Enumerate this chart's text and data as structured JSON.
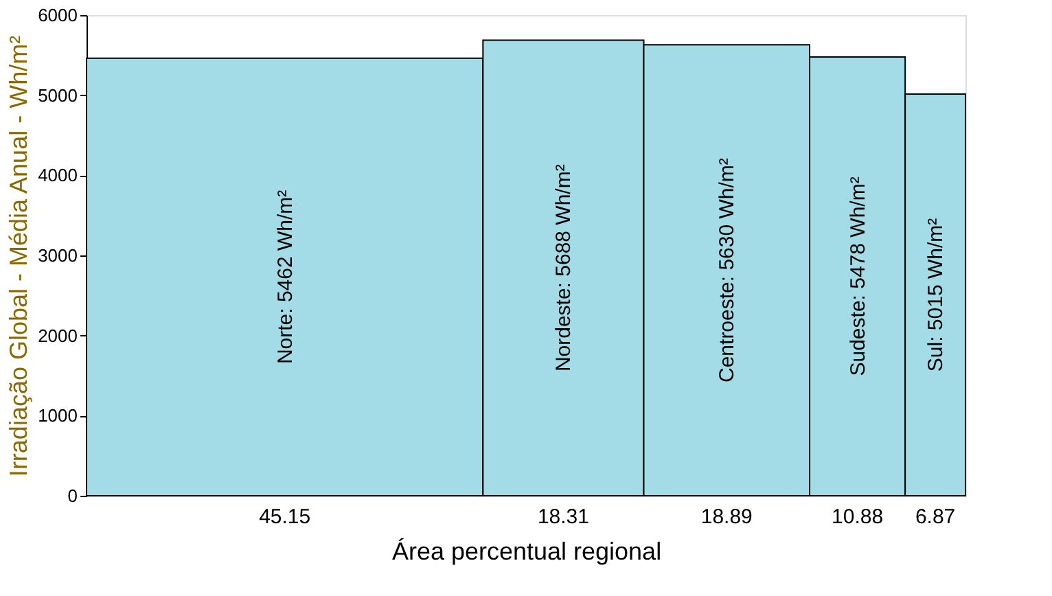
{
  "chart_data": {
    "type": "bar",
    "xlabel": "Área percentual regional",
    "ylabel": "Irradiação Global - Média Anual - Wh/m²",
    "categories": [
      "45.15",
      "18.31",
      "18.89",
      "10.88",
      "6.87"
    ],
    "values": [
      5462,
      5688,
      5630,
      5478,
      5015
    ],
    "value_labels": [
      "Norte: 5462 Wh/m²",
      "Nordeste: 5688 Wh/m²",
      "Centroeste: 5630 Wh/m²",
      "Sudeste: 5478 Wh/m²",
      "Sul: 5015 Wh/m²"
    ],
    "color": "#a3dbe6",
    "ylim": [
      0,
      6000
    ],
    "yticks": [
      0,
      1000,
      2000,
      3000,
      4000,
      5000,
      6000
    ]
  }
}
